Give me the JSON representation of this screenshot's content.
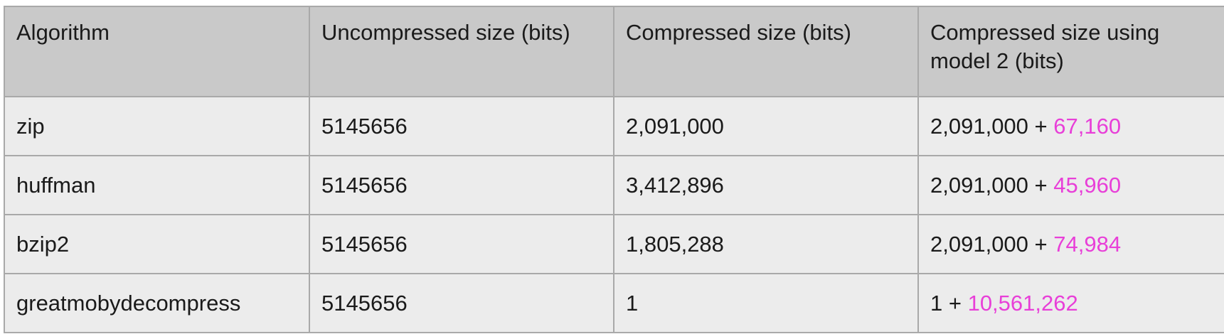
{
  "colors": {
    "header_bg": "#c9c9c9",
    "row_bg": "#ececec",
    "border": "#a9a9a9",
    "accent": "#e83fd8"
  },
  "table": {
    "headers": [
      "Algorithm",
      "Uncompressed size (bits)",
      "Compressed size (bits)",
      "Compressed size using model 2 (bits)"
    ],
    "rows": [
      {
        "algorithm": "zip",
        "uncompressed": "5145656",
        "compressed": "2,091,000",
        "model2_base": "2,091,000 + ",
        "model2_extra": "67,160"
      },
      {
        "algorithm": "huffman",
        "uncompressed": "5145656",
        "compressed": "3,412,896",
        "model2_base": "2,091,000 + ",
        "model2_extra": "45,960"
      },
      {
        "algorithm": "bzip2",
        "uncompressed": "5145656",
        "compressed": "1,805,288",
        "model2_base": "2,091,000 + ",
        "model2_extra": "74,984"
      },
      {
        "algorithm": "greatmobydecompress",
        "uncompressed": "5145656",
        "compressed": "1",
        "model2_base": "1 + ",
        "model2_extra": "10,561,262"
      }
    ]
  }
}
